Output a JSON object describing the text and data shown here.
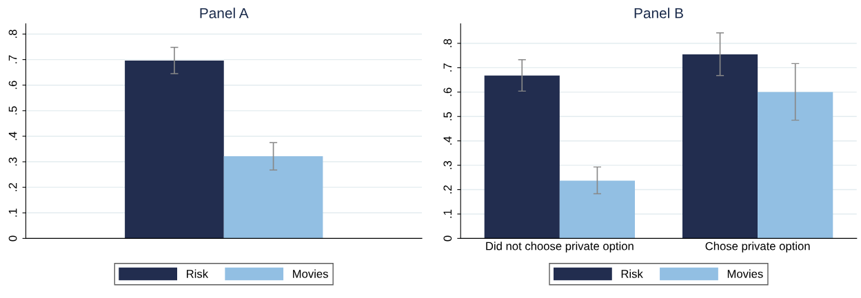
{
  "chart_data": [
    {
      "type": "bar",
      "title": "Panel A",
      "categories": [
        null
      ],
      "ylim": [
        0,
        0.84
      ],
      "yticks": [
        {
          "value": 0,
          "label": "0"
        },
        {
          "value": 0.1,
          "label": ".1"
        },
        {
          "value": 0.2,
          "label": ".2"
        },
        {
          "value": 0.3,
          "label": ".3"
        },
        {
          "value": 0.4,
          "label": ".4"
        },
        {
          "value": 0.5,
          "label": ".5"
        },
        {
          "value": 0.6,
          "label": ".6"
        },
        {
          "value": 0.7,
          "label": ".7"
        },
        {
          "value": 0.8,
          "label": ".8"
        }
      ],
      "grid": "y",
      "legend": "bottom",
      "series": [
        {
          "name": "Risk",
          "color": "#222d4f",
          "values": [
            0.696
          ],
          "errors": [
            [
              0.645,
              0.748
            ]
          ]
        },
        {
          "name": "Movies",
          "color": "#92bfe3",
          "values": [
            0.322
          ],
          "errors": [
            [
              0.268,
              0.375
            ]
          ]
        }
      ]
    },
    {
      "type": "bar",
      "title": "Panel B",
      "categories": [
        "Did not choose private option",
        "Chose private option"
      ],
      "ylim": [
        0,
        0.88
      ],
      "yticks": [
        {
          "value": 0,
          "label": "0"
        },
        {
          "value": 0.1,
          "label": ".1"
        },
        {
          "value": 0.2,
          "label": ".2"
        },
        {
          "value": 0.3,
          "label": ".3"
        },
        {
          "value": 0.4,
          "label": ".4"
        },
        {
          "value": 0.5,
          "label": ".5"
        },
        {
          "value": 0.6,
          "label": ".6"
        },
        {
          "value": 0.7,
          "label": ".7"
        },
        {
          "value": 0.8,
          "label": ".8"
        }
      ],
      "grid": "y",
      "legend": "bottom",
      "series": [
        {
          "name": "Risk",
          "color": "#222d4f",
          "values": [
            0.668,
            0.755
          ],
          "errors": [
            [
              0.604,
              0.733
            ],
            [
              0.668,
              0.843
            ]
          ]
        },
        {
          "name": "Movies",
          "color": "#92bfe3",
          "values": [
            0.237,
            0.6
          ],
          "errors": [
            [
              0.183,
              0.293
            ],
            [
              0.485,
              0.717
            ]
          ]
        }
      ]
    }
  ]
}
